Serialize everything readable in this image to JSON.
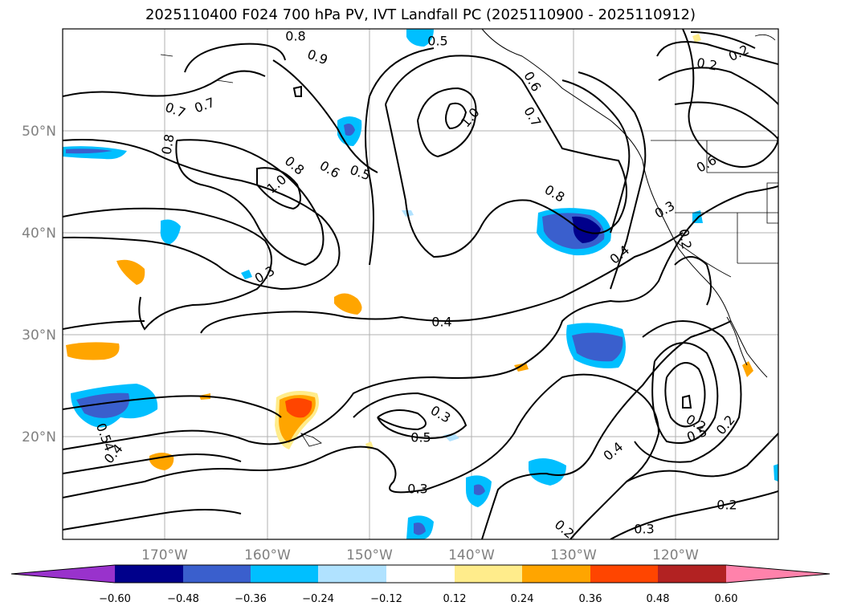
{
  "title": "2025110400 F024 700 hPa PV, IVT Landfall PC (2025110900 - 2025110912)",
  "map": {
    "lon_ticks": [
      "170°W",
      "160°W",
      "150°W",
      "140°W",
      "130°W",
      "120°W"
    ],
    "lat_ticks": [
      "50°N",
      "40°N",
      "30°N",
      "20°N"
    ],
    "tick_color": "#808080",
    "gridline_color": "#b0b0b0"
  },
  "contour_labels": [
    "0.8",
    "0.5",
    "0.9",
    "0.7",
    "0.7",
    "0.8",
    "1.0",
    "0.8",
    "0.6",
    "0.5",
    "1.0",
    "0.6",
    "0.7",
    "0.8",
    "0.4",
    "0.3",
    "0.6",
    "0.3",
    "0.2",
    "0.3",
    "0.4",
    "0.5",
    "0.3",
    "0.2",
    "0.2",
    "0.5",
    "0.4",
    "0.2",
    "0.2",
    "0.3",
    "0.2",
    "0.2",
    "0.54",
    "0.4"
  ],
  "colorbar": {
    "ticks": [
      "−0.60",
      "−0.48",
      "−0.36",
      "−0.24",
      "−0.12",
      "0.12",
      "0.24",
      "0.36",
      "0.48",
      "0.60"
    ],
    "colors": [
      "#9932CC",
      "#00008B",
      "#3A5FCD",
      "#00BFFF",
      "#B0E2FF",
      "#FFFFFF",
      "#FFEC8B",
      "#FFA500",
      "#FF4500",
      "#B22222",
      "#FF82AB"
    ]
  }
}
